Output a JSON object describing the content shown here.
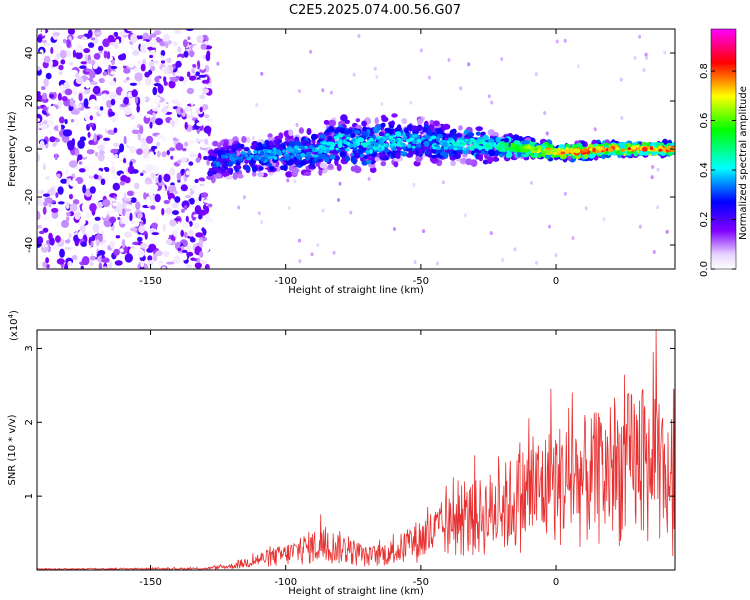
{
  "title": "C2E5.2025.074.00.56.G07",
  "chart_data": [
    {
      "type": "heatmap",
      "xlabel": "Height of straight line (km)",
      "ylabel": "Frequency (Hz)",
      "xlim": [
        -192,
        44
      ],
      "ylim": [
        -50,
        50
      ],
      "x_ticks": [
        -150,
        -100,
        -50,
        0
      ],
      "x_tick_labels": [
        "-150",
        "-100",
        "-50",
        "0"
      ],
      "y_ticks": [
        -40,
        -20,
        0,
        20,
        40
      ],
      "y_tick_labels": [
        "-40",
        "-20",
        "0",
        "20",
        "40"
      ],
      "colorbar": {
        "label": "Normalized spectral amplitude",
        "range": [
          0,
          0.97
        ],
        "ticks": [
          0.0,
          0.2,
          0.4,
          0.6,
          0.8
        ],
        "tick_labels": [
          "0.0",
          "0.2",
          "0.4",
          "0.6",
          "0.8"
        ],
        "colormap": [
          "#ffffff",
          "#8000ff",
          "#0000ff",
          "#00ffff",
          "#00ff00",
          "#ffff00",
          "#ff0000",
          "#ff00ff"
        ]
      },
      "noise_region": {
        "x": [
          -192,
          -128
        ],
        "y": [
          -50,
          50
        ],
        "amplitude": 0.12
      },
      "ridge": {
        "x": [
          -128,
          -110,
          -90,
          -80,
          -70,
          -60,
          -50,
          -40,
          -30,
          -20,
          -10,
          0,
          10,
          20,
          30,
          44
        ],
        "center": [
          -5,
          -3,
          -1,
          3,
          1,
          4,
          3,
          2,
          2,
          1,
          0,
          -1,
          -1,
          0,
          0,
          0
        ],
        "width": [
          6,
          6,
          7,
          8,
          8,
          8,
          7,
          6,
          6,
          4,
          3,
          2.5,
          2.5,
          2,
          2,
          2
        ],
        "peak": [
          0.35,
          0.4,
          0.42,
          0.45,
          0.45,
          0.45,
          0.42,
          0.45,
          0.48,
          0.55,
          0.7,
          0.82,
          0.85,
          0.88,
          0.88,
          0.85
        ]
      }
    },
    {
      "type": "line",
      "xlabel": "Height of straight line (km)",
      "ylabel": "SNR (10 * v/v)",
      "y_multiplier_label": "(x10",
      "y_multiplier_exp": "4",
      "y_multiplier_close": ")",
      "xlim": [
        -192,
        44
      ],
      "ylim": [
        0,
        3.25
      ],
      "x_ticks": [
        -150,
        -100,
        -50,
        0
      ],
      "x_tick_labels": [
        "-150",
        "-100",
        "-50",
        "0"
      ],
      "y_ticks": [
        1,
        2,
        3
      ],
      "y_tick_labels": [
        "1",
        "2",
        "3"
      ],
      "color": "#e83030",
      "envelope": {
        "x": [
          -192,
          -130,
          -120,
          -110,
          -100,
          -90,
          -80,
          -70,
          -60,
          -50,
          -40,
          -30,
          -20,
          -10,
          0,
          10,
          20,
          30,
          44
        ],
        "level": [
          0.02,
          0.03,
          0.08,
          0.22,
          0.32,
          0.5,
          0.48,
          0.28,
          0.38,
          0.65,
          0.9,
          1.1,
          1.3,
          1.6,
          1.8,
          1.9,
          2.0,
          2.3,
          1.9
        ]
      },
      "peaks": [
        {
          "x": 37,
          "y": 3.25
        },
        {
          "x": 36,
          "y": 2.95
        },
        {
          "x": 43.5,
          "y": 2.45
        },
        {
          "x": -2,
          "y": 2.45
        },
        {
          "x": 6,
          "y": 2.4
        },
        {
          "x": 20,
          "y": 2.2
        },
        {
          "x": 29,
          "y": 2.05
        },
        {
          "x": 25,
          "y": 1.95
        },
        {
          "x": -10,
          "y": 2.05
        },
        {
          "x": -30,
          "y": 1.55
        },
        {
          "x": -38,
          "y": 1.25
        },
        {
          "x": -87,
          "y": 0.75
        }
      ]
    }
  ]
}
